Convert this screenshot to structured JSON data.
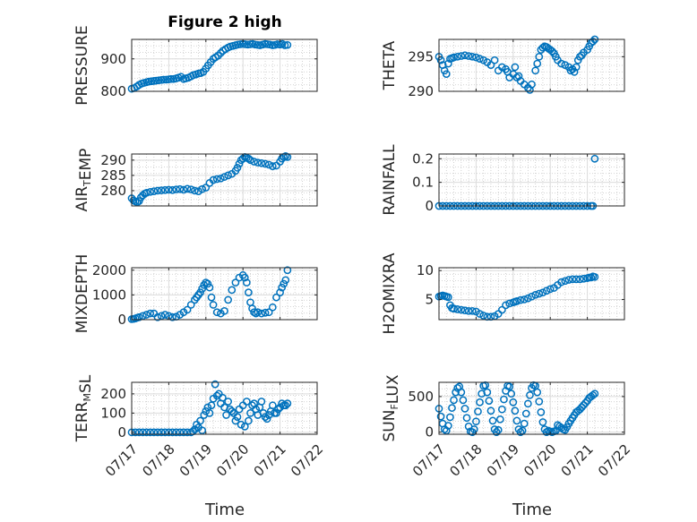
{
  "figure": {
    "title": "Figure 2 high",
    "xlabel": "Time"
  },
  "colors": {
    "marker": "#0072BD",
    "axis": "#262626",
    "grid": "#dcdcdc",
    "minor_grid": "#c8c8c8"
  },
  "chart_data": [
    {
      "type": "scatter",
      "ylabel": "PRESSURE",
      "ylabel_parts": [
        {
          "t": "PRESSURE"
        }
      ],
      "xlim": [
        0,
        5
      ],
      "ylim": [
        800,
        960
      ],
      "yticks": [
        800,
        900
      ],
      "ytick_labels": [
        "800",
        "900"
      ],
      "xtick_labels": [],
      "x": [
        0.0,
        0.07,
        0.14,
        0.2,
        0.27,
        0.33,
        0.4,
        0.46,
        0.53,
        0.6,
        0.66,
        0.73,
        0.8,
        0.86,
        0.93,
        1.0,
        1.06,
        1.13,
        1.2,
        1.26,
        1.33,
        1.4,
        1.46,
        1.53,
        1.6,
        1.66,
        1.73,
        1.8,
        1.86,
        1.93,
        2.0,
        2.06,
        2.13,
        2.2,
        2.26,
        2.33,
        2.4,
        2.46,
        2.53,
        2.6,
        2.66,
        2.73,
        2.8,
        2.86,
        2.93,
        3.0,
        3.06,
        3.13,
        3.2,
        3.26,
        3.33,
        3.4,
        3.46,
        3.53,
        3.6,
        3.66,
        3.73,
        3.8,
        3.86,
        3.93,
        4.0,
        4.06,
        4.13,
        4.2
      ],
      "y": [
        808,
        810,
        815,
        820,
        824,
        826,
        828,
        830,
        831,
        832,
        833,
        834,
        835,
        836,
        836,
        837,
        838,
        838,
        840,
        842,
        845,
        838,
        840,
        842,
        846,
        850,
        852,
        855,
        856,
        860,
        870,
        880,
        890,
        900,
        905,
        910,
        918,
        925,
        930,
        935,
        938,
        940,
        942,
        944,
        945,
        946,
        945,
        944,
        945,
        946,
        944,
        943,
        942,
        944,
        946,
        945,
        944,
        942,
        943,
        945,
        944,
        946,
        942,
        943
      ]
    },
    {
      "type": "scatter",
      "ylabel": "THETA",
      "ylabel_parts": [
        {
          "t": "THETA"
        }
      ],
      "xlim": [
        0,
        5
      ],
      "ylim": [
        290,
        297.5
      ],
      "yticks": [
        290,
        295
      ],
      "ytick_labels": [
        "290",
        "295"
      ],
      "xtick_labels": [],
      "x": [
        0.0,
        0.05,
        0.1,
        0.15,
        0.2,
        0.25,
        0.3,
        0.35,
        0.4,
        0.5,
        0.6,
        0.7,
        0.8,
        0.9,
        1.0,
        1.1,
        1.2,
        1.3,
        1.4,
        1.5,
        1.6,
        1.7,
        1.8,
        1.85,
        1.9,
        2.0,
        2.05,
        2.1,
        2.15,
        2.2,
        2.3,
        2.4,
        2.45,
        2.5,
        2.6,
        2.65,
        2.7,
        2.75,
        2.8,
        2.85,
        2.9,
        2.95,
        3.0,
        3.05,
        3.1,
        3.15,
        3.2,
        3.3,
        3.4,
        3.5,
        3.55,
        3.6,
        3.65,
        3.7,
        3.75,
        3.8,
        3.85,
        3.9,
        4.0,
        4.05,
        4.1,
        4.15,
        4.2
      ],
      "y": [
        295,
        294.5,
        293.8,
        293,
        292.5,
        294,
        294.7,
        294.8,
        294.9,
        295,
        295.1,
        295.2,
        295.1,
        295,
        294.9,
        294.7,
        294.5,
        294.2,
        293.8,
        294.5,
        293,
        293.5,
        293.2,
        292.8,
        292,
        292.5,
        293.5,
        292,
        292.2,
        291.5,
        291,
        290.5,
        290.2,
        291,
        293,
        294,
        295,
        296,
        296.3,
        296.5,
        296.4,
        296.2,
        296,
        295.8,
        295.5,
        295,
        294.5,
        294,
        293.8,
        293.5,
        293,
        293.2,
        292.8,
        293.5,
        294.5,
        295,
        295.2,
        295.6,
        296,
        296.5,
        297,
        297.2,
        297.5
      ]
    },
    {
      "type": "scatter",
      "ylabel": "AIR_TEMP",
      "ylabel_parts": [
        {
          "t": "AIR"
        },
        {
          "t": "T",
          "sub": true
        },
        {
          "t": "EMP"
        }
      ],
      "xlim": [
        0,
        5
      ],
      "ylim": [
        275,
        292
      ],
      "yticks": [
        280,
        285,
        290
      ],
      "ytick_labels": [
        "280",
        "285",
        "290"
      ],
      "xtick_labels": [],
      "x": [
        0.0,
        0.05,
        0.1,
        0.15,
        0.2,
        0.25,
        0.3,
        0.35,
        0.4,
        0.5,
        0.6,
        0.7,
        0.8,
        0.9,
        1.0,
        1.1,
        1.2,
        1.3,
        1.4,
        1.5,
        1.6,
        1.7,
        1.8,
        1.9,
        2.0,
        2.1,
        2.2,
        2.3,
        2.4,
        2.5,
        2.6,
        2.7,
        2.8,
        2.85,
        2.9,
        2.95,
        3.0,
        3.05,
        3.1,
        3.15,
        3.2,
        3.3,
        3.4,
        3.5,
        3.6,
        3.7,
        3.8,
        3.9,
        4.0,
        4.05,
        4.1,
        4.15,
        4.2
      ],
      "y": [
        277.5,
        276.8,
        276.5,
        276.2,
        276.6,
        277.8,
        278.5,
        279,
        279.3,
        279.6,
        279.8,
        280,
        280.1,
        280.2,
        280.3,
        280.2,
        280.4,
        280.5,
        280.3,
        280.6,
        280.4,
        280,
        279.8,
        280.5,
        281,
        282.5,
        283.5,
        283.8,
        284,
        284.5,
        285,
        285.5,
        286.5,
        287.5,
        288.8,
        290,
        290.5,
        291,
        290.8,
        290.5,
        290,
        289.5,
        289.2,
        289,
        288.8,
        288.5,
        288,
        288.2,
        289.5,
        290.5,
        291,
        291.3,
        291
      ]
    },
    {
      "type": "scatter",
      "ylabel": "RAINFALL",
      "ylabel_parts": [
        {
          "t": "RAINFALL"
        }
      ],
      "xlim": [
        0,
        5
      ],
      "ylim": [
        0,
        0.22
      ],
      "yticks": [
        0,
        0.1,
        0.2
      ],
      "ytick_labels": [
        "0",
        "0.1",
        "0.2"
      ],
      "xtick_labels": [],
      "x": [
        0.0,
        0.1,
        0.2,
        0.3,
        0.4,
        0.5,
        0.6,
        0.7,
        0.8,
        0.9,
        1.0,
        1.1,
        1.2,
        1.3,
        1.4,
        1.5,
        1.6,
        1.7,
        1.8,
        1.9,
        2.0,
        2.1,
        2.2,
        2.3,
        2.4,
        2.5,
        2.6,
        2.7,
        2.8,
        2.9,
        3.0,
        3.1,
        3.2,
        3.3,
        3.4,
        3.5,
        3.6,
        3.7,
        3.8,
        3.9,
        4.0,
        4.1,
        4.15,
        4.2
      ],
      "y": [
        0,
        0,
        0,
        0,
        0,
        0,
        0,
        0,
        0,
        0,
        0,
        0,
        0,
        0,
        0,
        0,
        0,
        0,
        0,
        0,
        0,
        0,
        0,
        0,
        0,
        0,
        0,
        0,
        0,
        0,
        0,
        0,
        0,
        0,
        0,
        0,
        0,
        0,
        0,
        0,
        0,
        0,
        0,
        0.2
      ]
    },
    {
      "type": "scatter",
      "ylabel": "MIXDEPTH",
      "ylabel_parts": [
        {
          "t": "MIXDEPTH"
        }
      ],
      "xlim": [
        0,
        5
      ],
      "ylim": [
        0,
        2100
      ],
      "yticks": [
        0,
        1000,
        2000
      ],
      "ytick_labels": [
        "0",
        "1000",
        "2000"
      ],
      "xtick_labels": [],
      "x": [
        0.0,
        0.05,
        0.1,
        0.15,
        0.2,
        0.3,
        0.4,
        0.5,
        0.6,
        0.7,
        0.8,
        0.9,
        1.0,
        1.1,
        1.2,
        1.3,
        1.4,
        1.5,
        1.6,
        1.7,
        1.75,
        1.8,
        1.85,
        1.9,
        1.95,
        2.0,
        2.05,
        2.1,
        2.15,
        2.2,
        2.3,
        2.4,
        2.5,
        2.6,
        2.7,
        2.8,
        2.9,
        3.0,
        3.05,
        3.1,
        3.15,
        3.2,
        3.25,
        3.3,
        3.35,
        3.4,
        3.5,
        3.6,
        3.7,
        3.8,
        3.9,
        4.0,
        4.05,
        4.1,
        4.15,
        4.2
      ],
      "y": [
        20,
        30,
        50,
        80,
        100,
        150,
        200,
        250,
        250,
        100,
        150,
        200,
        150,
        100,
        120,
        200,
        300,
        400,
        600,
        800,
        900,
        1000,
        1100,
        1250,
        1400,
        1500,
        1450,
        1300,
        900,
        600,
        300,
        250,
        350,
        800,
        1200,
        1500,
        1700,
        1800,
        1700,
        1500,
        1100,
        700,
        450,
        300,
        250,
        300,
        250,
        280,
        300,
        500,
        900,
        1100,
        1300,
        1450,
        1600,
        2000
      ]
    },
    {
      "type": "scatter",
      "ylabel": "H2OMIXRA",
      "ylabel_parts": [
        {
          "t": "H2OMIXRA"
        }
      ],
      "xlim": [
        0,
        5
      ],
      "ylim": [
        1.5,
        10.5
      ],
      "yticks": [
        5,
        10
      ],
      "ytick_labels": [
        "5",
        "10"
      ],
      "xtick_labels": [],
      "x": [
        0.0,
        0.05,
        0.1,
        0.15,
        0.2,
        0.25,
        0.3,
        0.35,
        0.4,
        0.5,
        0.6,
        0.7,
        0.8,
        0.9,
        1.0,
        1.1,
        1.2,
        1.3,
        1.4,
        1.5,
        1.6,
        1.7,
        1.8,
        1.9,
        2.0,
        2.05,
        2.1,
        2.2,
        2.3,
        2.4,
        2.5,
        2.6,
        2.7,
        2.8,
        2.9,
        3.0,
        3.1,
        3.2,
        3.3,
        3.4,
        3.5,
        3.6,
        3.7,
        3.8,
        3.9,
        4.0,
        4.05,
        4.1,
        4.15,
        4.2
      ],
      "y": [
        5.5,
        5.6,
        5.7,
        5.6,
        5.5,
        5.4,
        4.0,
        3.5,
        3.4,
        3.3,
        3.2,
        3.1,
        3.0,
        3.0,
        2.9,
        2.5,
        2.2,
        2.0,
        2.0,
        2.1,
        2.5,
        3.2,
        4.0,
        4.3,
        4.5,
        4.6,
        4.7,
        4.9,
        5.0,
        5.2,
        5.5,
        5.8,
        6.0,
        6.2,
        6.5,
        6.8,
        7.0,
        7.5,
        8.0,
        8.2,
        8.4,
        8.5,
        8.5,
        8.5,
        8.6,
        8.7,
        8.8,
        8.8,
        9.0,
        8.9
      ]
    },
    {
      "type": "scatter",
      "ylabel": "TERR_MSL",
      "ylabel_parts": [
        {
          "t": "TERR"
        },
        {
          "t": "M",
          "sub": true
        },
        {
          "t": "SL"
        }
      ],
      "xlim": [
        0,
        5
      ],
      "ylim": [
        -10,
        260
      ],
      "yticks": [
        0,
        100,
        200
      ],
      "ytick_labels": [
        "0",
        "100",
        "200"
      ],
      "xtick_labels": [
        "07/17",
        "07/18",
        "07/19",
        "07/20",
        "07/21",
        "07/22"
      ],
      "x": [
        0.0,
        0.1,
        0.2,
        0.3,
        0.4,
        0.5,
        0.6,
        0.7,
        0.8,
        0.9,
        1.0,
        1.1,
        1.2,
        1.3,
        1.4,
        1.5,
        1.6,
        1.65,
        1.7,
        1.75,
        1.8,
        1.85,
        1.9,
        1.95,
        2.0,
        2.05,
        2.1,
        2.15,
        2.2,
        2.25,
        2.3,
        2.35,
        2.4,
        2.45,
        2.5,
        2.55,
        2.6,
        2.65,
        2.7,
        2.75,
        2.8,
        2.85,
        2.9,
        2.95,
        3.0,
        3.05,
        3.1,
        3.15,
        3.2,
        3.25,
        3.3,
        3.35,
        3.4,
        3.45,
        3.5,
        3.55,
        3.6,
        3.65,
        3.7,
        3.75,
        3.8,
        3.85,
        3.9,
        3.95,
        4.0,
        4.05,
        4.1,
        4.15,
        4.2
      ],
      "y": [
        0,
        0,
        0,
        0,
        0,
        0,
        0,
        0,
        0,
        0,
        0,
        0,
        0,
        0,
        0,
        0,
        0,
        5,
        15,
        40,
        25,
        60,
        10,
        90,
        110,
        130,
        100,
        140,
        175,
        250,
        190,
        200,
        150,
        180,
        130,
        90,
        160,
        120,
        110,
        100,
        60,
        80,
        120,
        40,
        140,
        30,
        160,
        60,
        100,
        140,
        150,
        120,
        90,
        130,
        160,
        100,
        80,
        70,
        90,
        110,
        140,
        100,
        100,
        120,
        130,
        150,
        140,
        140,
        150
      ]
    },
    {
      "type": "scatter",
      "ylabel": "SUN_FLUX",
      "ylabel_parts": [
        {
          "t": "SUN"
        },
        {
          "t": "F",
          "sub": true
        },
        {
          "t": "LUX"
        }
      ],
      "xlim": [
        0,
        5
      ],
      "ylim": [
        -30,
        700
      ],
      "yticks": [
        0,
        500
      ],
      "ytick_labels": [
        "0",
        "500"
      ],
      "xtick_labels": [
        "07/17",
        "07/18",
        "07/19",
        "07/20",
        "07/21",
        "07/22"
      ],
      "x": [
        0.0,
        0.05,
        0.1,
        0.15,
        0.2,
        0.25,
        0.3,
        0.35,
        0.4,
        0.45,
        0.5,
        0.55,
        0.6,
        0.65,
        0.7,
        0.75,
        0.8,
        0.85,
        0.9,
        0.95,
        1.0,
        1.05,
        1.1,
        1.15,
        1.2,
        1.25,
        1.3,
        1.35,
        1.4,
        1.45,
        1.5,
        1.55,
        1.6,
        1.65,
        1.7,
        1.75,
        1.8,
        1.85,
        1.9,
        1.95,
        2.0,
        2.05,
        2.1,
        2.15,
        2.2,
        2.25,
        2.3,
        2.35,
        2.4,
        2.45,
        2.5,
        2.55,
        2.6,
        2.65,
        2.7,
        2.75,
        2.8,
        2.85,
        2.9,
        2.95,
        3.0,
        3.05,
        3.1,
        3.15,
        3.2,
        3.25,
        3.3,
        3.35,
        3.4,
        3.45,
        3.5,
        3.55,
        3.6,
        3.65,
        3.7,
        3.75,
        3.8,
        3.85,
        3.9,
        3.95,
        4.0,
        4.05,
        4.1,
        4.15,
        4.2
      ],
      "y": [
        330,
        220,
        120,
        40,
        20,
        90,
        210,
        340,
        450,
        560,
        620,
        640,
        560,
        450,
        330,
        200,
        80,
        10,
        0,
        40,
        150,
        290,
        420,
        540,
        650,
        660,
        560,
        440,
        300,
        160,
        40,
        0,
        30,
        180,
        320,
        460,
        580,
        650,
        640,
        540,
        420,
        300,
        160,
        40,
        0,
        20,
        120,
        260,
        400,
        520,
        620,
        660,
        650,
        560,
        430,
        280,
        140,
        40,
        0,
        20,
        10,
        0,
        10,
        20,
        100,
        80,
        60,
        40,
        30,
        70,
        120,
        160,
        200,
        240,
        280,
        300,
        320,
        350,
        380,
        410,
        440,
        480,
        500,
        520,
        540
      ]
    }
  ]
}
